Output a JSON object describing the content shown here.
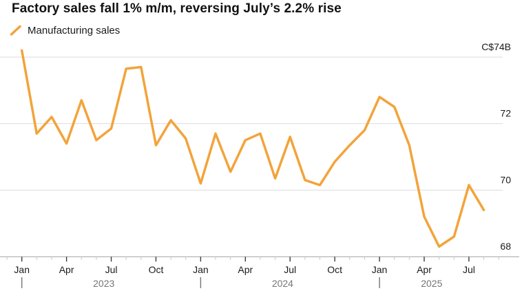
{
  "title": "Factory sales fall 1% m/m, reversing July’s 2.2% rise",
  "legend": {
    "label": "Manufacturing sales"
  },
  "colors": {
    "line": "#F3A33A",
    "gridline": "#DBDBDB",
    "axis_line": "#ACACAC",
    "tick_major": "#3C3C3C",
    "tick_minor": "#C6C6C6",
    "text_dark": "#1A1A1A",
    "text_secondary": "#757575"
  },
  "y_axis": {
    "labels": [
      {
        "text": "C$74B",
        "value": 74
      },
      {
        "text": "72",
        "value": 72
      },
      {
        "text": "70",
        "value": 70
      },
      {
        "text": "68",
        "value": 68
      }
    ],
    "gridline_values": [
      74,
      72,
      70
    ]
  },
  "x_axis": {
    "major_labels": [
      {
        "text": "Jan",
        "index": 0
      },
      {
        "text": "Apr",
        "index": 3
      },
      {
        "text": "Jul",
        "index": 6
      },
      {
        "text": "Oct",
        "index": 9
      },
      {
        "text": "Jan",
        "index": 12
      },
      {
        "text": "Apr",
        "index": 15
      },
      {
        "text": "Jul",
        "index": 18
      },
      {
        "text": "Oct",
        "index": 21
      },
      {
        "text": "Jan",
        "index": 24
      },
      {
        "text": "Apr",
        "index": 27
      },
      {
        "text": "Jul",
        "index": 30
      }
    ],
    "year_markers": [
      {
        "index": 0
      },
      {
        "index": 12
      },
      {
        "index": 24
      }
    ],
    "year_labels": [
      {
        "text": "2023",
        "start_index": 0,
        "end_index": 11
      },
      {
        "text": "2024",
        "start_index": 12,
        "end_index": 23
      },
      {
        "text": "2025",
        "start_index": 24,
        "end_index": 31
      }
    ],
    "tick_start_index": -1,
    "tick_end_index": 32
  },
  "chart_data": {
    "type": "line",
    "title": "Factory sales fall 1% m/m, reversing July’s 2.2% rise",
    "unit": "C$ billions",
    "ylim": [
      68,
      74.5
    ],
    "yticks": [
      68,
      70,
      72,
      74
    ],
    "grid": "horizontal",
    "legend_position": "top-left",
    "x": [
      "Jan 2023",
      "Feb 2023",
      "Mar 2023",
      "Apr 2023",
      "May 2023",
      "Jun 2023",
      "Jul 2023",
      "Aug 2023",
      "Sep 2023",
      "Oct 2023",
      "Nov 2023",
      "Dec 2023",
      "Jan 2024",
      "Feb 2024",
      "Mar 2024",
      "Apr 2024",
      "May 2024",
      "Jun 2024",
      "Jul 2024",
      "Aug 2024",
      "Sep 2024",
      "Oct 2024",
      "Nov 2024",
      "Dec 2024",
      "Jan 2025",
      "Feb 2025",
      "Mar 2025",
      "Apr 2025",
      "May 2025",
      "Jun 2025",
      "Jul 2025",
      "Aug 2025"
    ],
    "series": [
      {
        "name": "Manufacturing sales",
        "values": [
          74.2,
          71.7,
          72.2,
          71.4,
          72.7,
          71.5,
          71.85,
          73.65,
          73.7,
          71.35,
          72.1,
          71.55,
          70.2,
          71.7,
          70.55,
          71.5,
          71.7,
          70.35,
          71.6,
          70.3,
          70.15,
          70.85,
          71.35,
          71.8,
          72.8,
          72.5,
          71.35,
          69.2,
          68.3,
          68.6,
          70.15,
          69.4
        ]
      }
    ]
  }
}
